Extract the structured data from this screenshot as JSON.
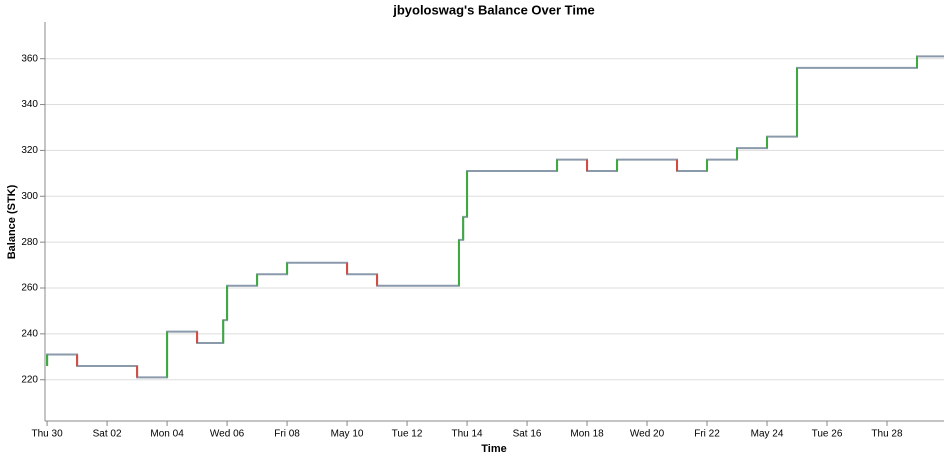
{
  "chart_data": {
    "type": "step",
    "title": "jbyoloswag's Balance Over Time",
    "x_label": "Time",
    "y_label": "Balance (STK)",
    "x": [
      0,
      0,
      1,
      3,
      4,
      5,
      5.87,
      6,
      7,
      8,
      10,
      11,
      13.73,
      13.87,
      14,
      17,
      18,
      19,
      21,
      22,
      23,
      24,
      25,
      29
    ],
    "values": [
      226,
      231,
      226,
      221,
      241,
      236,
      246,
      261,
      266,
      271,
      266,
      261,
      281,
      291,
      311,
      316,
      311,
      316,
      311,
      316,
      321,
      326,
      356,
      361
    ],
    "color": "#8a9aab",
    "up_color": "#3aab3a",
    "down_color": "#d9483b",
    "xlim": [
      -0.07,
      29.9
    ],
    "ylim": [
      202,
      376
    ],
    "xticks": [
      {
        "value": 0,
        "label": "Thu 30"
      },
      {
        "value": 2,
        "label": "Sat 02"
      },
      {
        "value": 4,
        "label": "Mon 04"
      },
      {
        "value": 6,
        "label": "Wed 06"
      },
      {
        "value": 8,
        "label": "Fri 08"
      },
      {
        "value": 10,
        "label": "May 10"
      },
      {
        "value": 12,
        "label": "Tue 12"
      },
      {
        "value": 14,
        "label": "Thu 14"
      },
      {
        "value": 16,
        "label": "Sat 16"
      },
      {
        "value": 18,
        "label": "Mon 18"
      },
      {
        "value": 20,
        "label": "Wed 20"
      },
      {
        "value": 22,
        "label": "Fri 22"
      },
      {
        "value": 24,
        "label": "May 24"
      },
      {
        "value": 26,
        "label": "Tue 26"
      },
      {
        "value": 28,
        "label": "Thu 28"
      }
    ],
    "yticks": [
      220,
      240,
      260,
      280,
      300,
      320,
      340,
      360
    ],
    "grid": true
  }
}
